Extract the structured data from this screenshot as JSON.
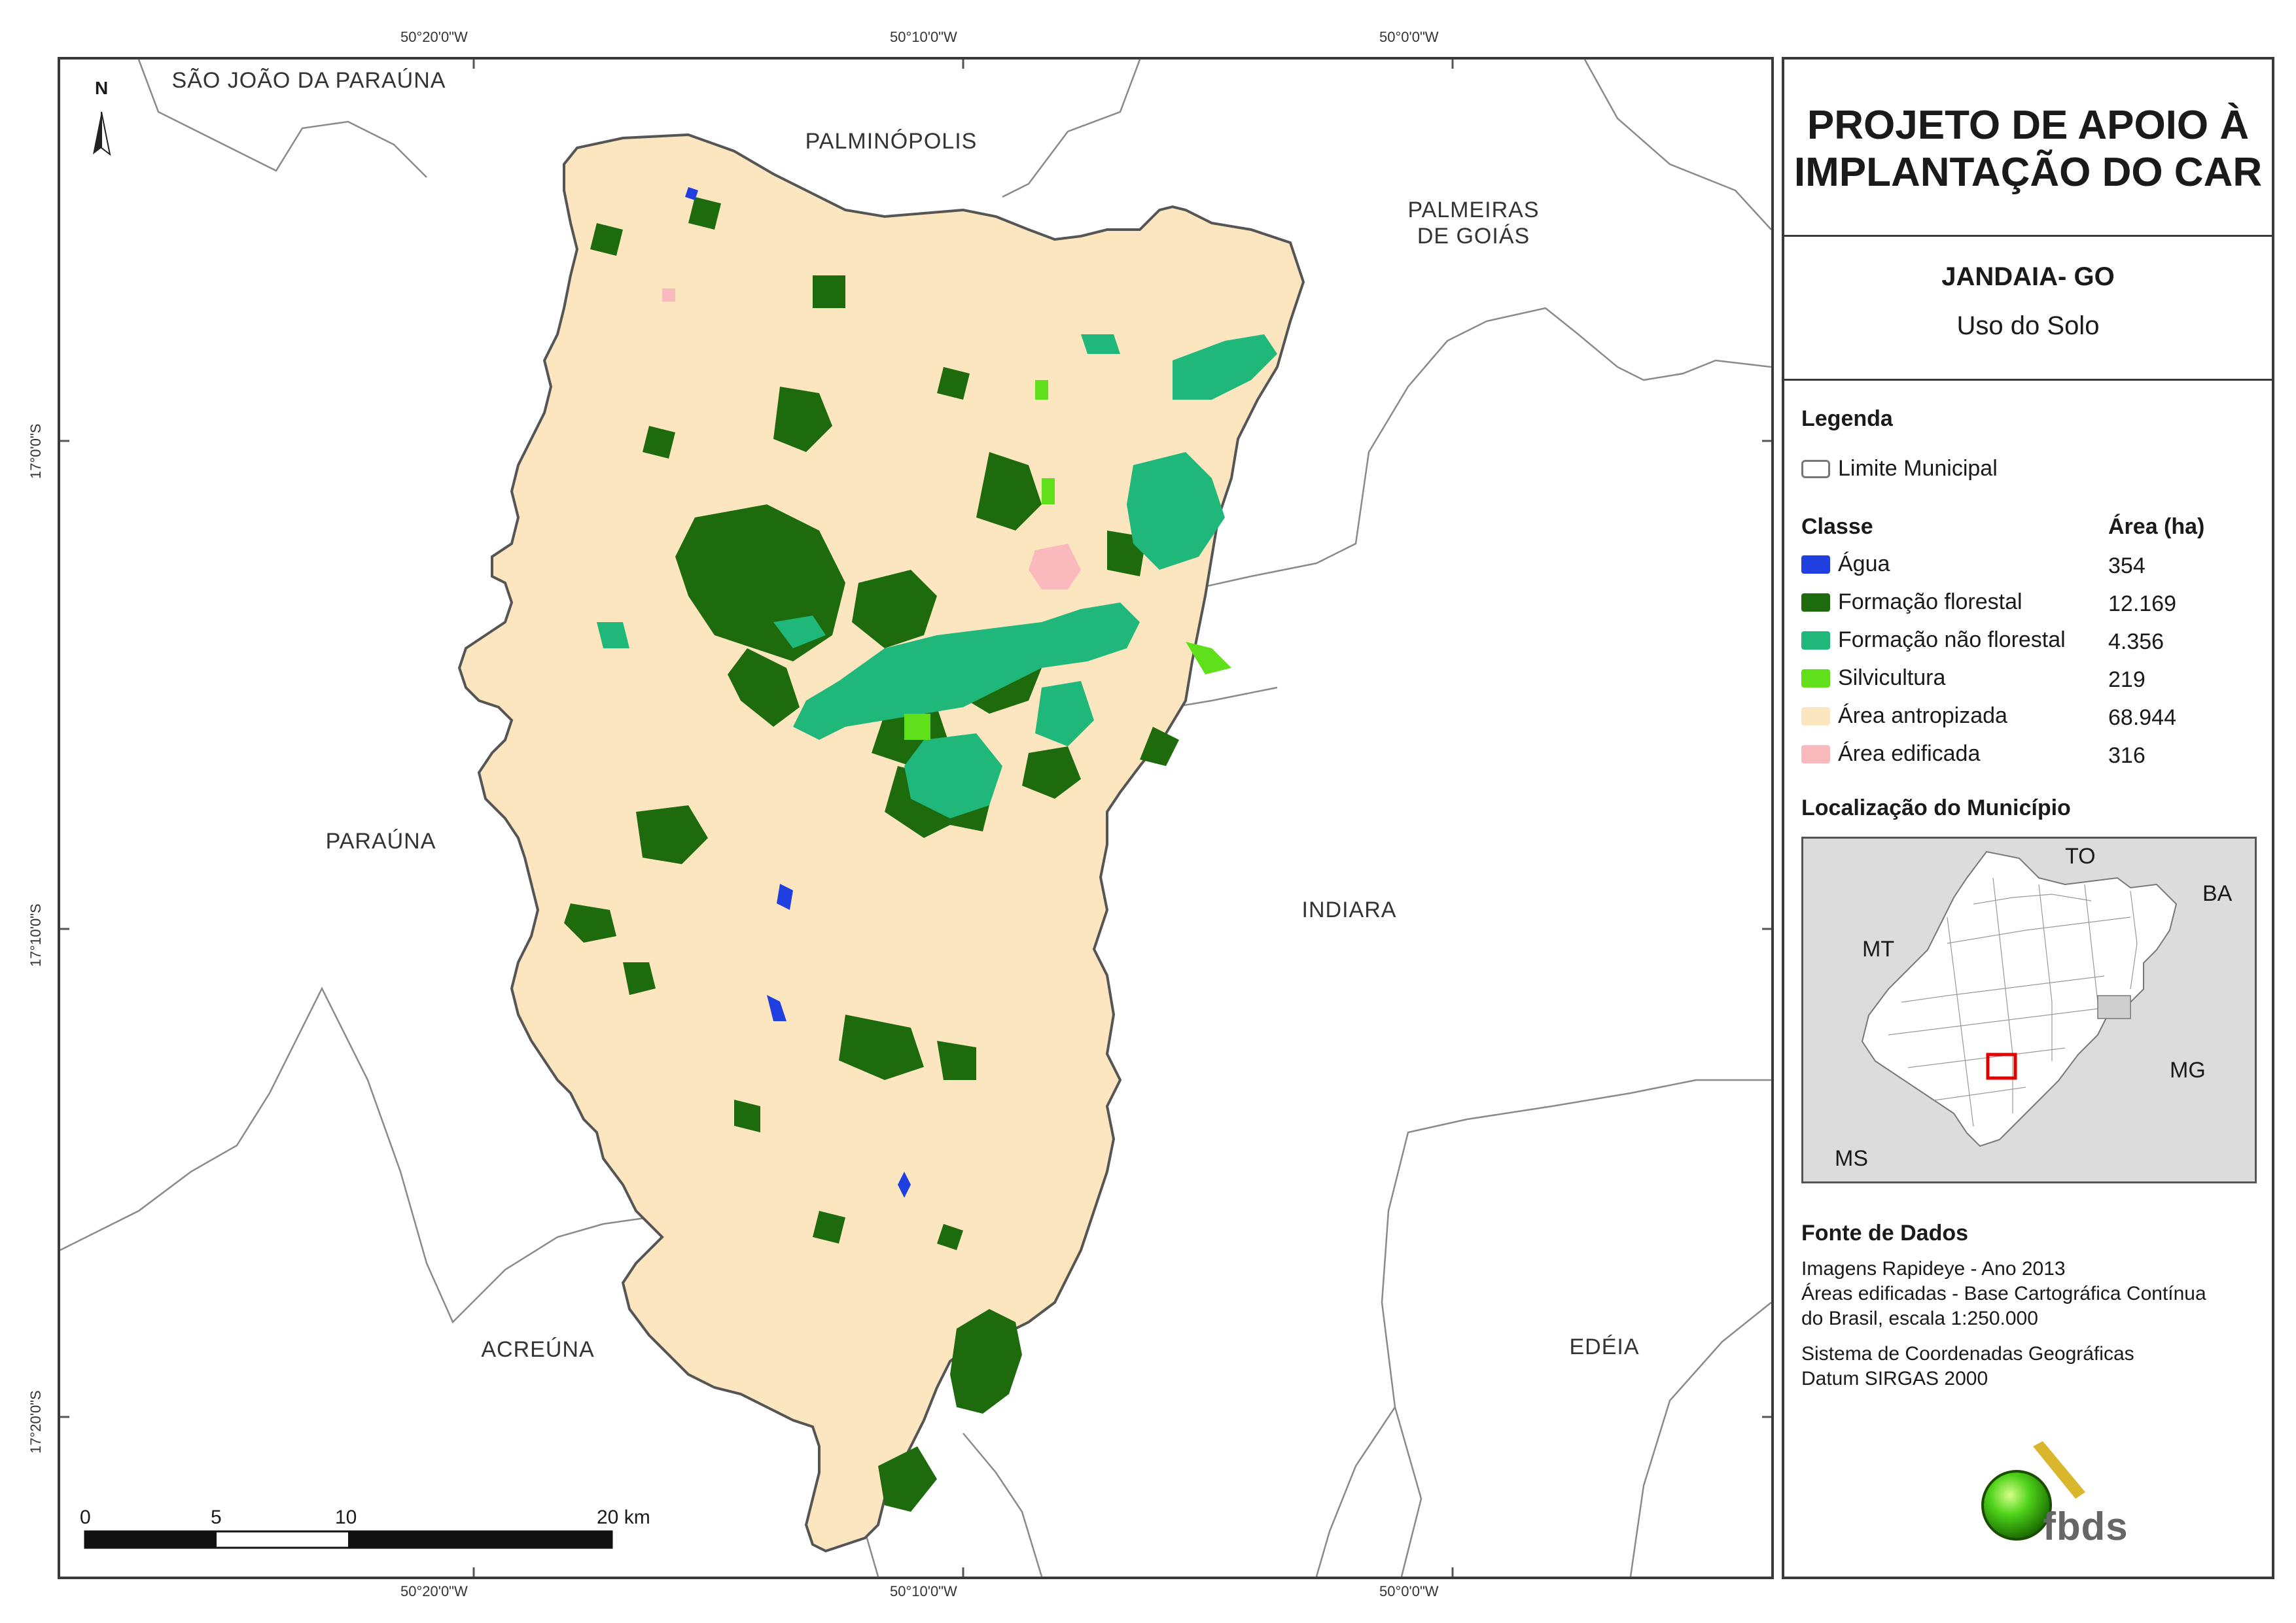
{
  "map": {
    "coords_top": [
      "50°20'0\"W",
      "50°10'0\"W",
      "50°0'0\"W"
    ],
    "coords_bottom": [
      "50°20'0\"W",
      "50°10'0\"W",
      "50°0'0\"W"
    ],
    "coords_left": [
      "17°0'0\"S",
      "17°10'0\"S",
      "17°20'0\"S"
    ],
    "north_label": "N",
    "places": {
      "sao_joao": "SÃO JOÃO DA PARAÚNA",
      "palminopolis": "PALMINÓPOLIS",
      "palmeiras_1": "PALMEIRAS",
      "palmeiras_2": "DE GOIÁS",
      "parauna": "PARAÚNA",
      "indiara": "INDIARA",
      "acreuna": "ACREÚNA",
      "edeia": "EDÉIA"
    },
    "scale_labels": [
      "0",
      "5",
      "10",
      "20 km"
    ]
  },
  "panel": {
    "title_line1": "PROJETO DE APOIO À",
    "title_line2": "IMPLANTAÇÃO DO CAR",
    "municipality": "JANDAIA- GO",
    "theme": "Uso do Solo",
    "legend_heading": "Legenda",
    "boundary_label": "Limite Municipal",
    "class_heading": "Classe",
    "area_heading": "Área (ha)",
    "classes": [
      {
        "label": "Água",
        "area": "354",
        "color": "#1f3fe0"
      },
      {
        "label": "Formação florestal",
        "area": "12.169",
        "color": "#1e6b0e"
      },
      {
        "label": "Formação não florestal",
        "area": "4.356",
        "color": "#20b77a"
      },
      {
        "label": "Silvicultura",
        "area": "219",
        "color": "#5fe01a"
      },
      {
        "label": "Área antropizada",
        "area": "68.944",
        "color": "#fbe6bf"
      },
      {
        "label": "Área edificada",
        "area": "316",
        "color": "#f9b9bd"
      }
    ],
    "location_heading": "Localização do Município",
    "inset_labels": {
      "to": "TO",
      "ba": "BA",
      "mt": "MT",
      "mg": "MG",
      "ms": "MS"
    },
    "source_heading": "Fonte de Dados",
    "source_lines": [
      "Imagens Rapideye - Ano 2013",
      "Áreas edificadas - Base Cartográfica Contínua",
      "do Brasil, escala 1:250.000"
    ],
    "crs_lines": [
      "Sistema de Coordenadas Geográficas",
      "Datum SIRGAS 2000"
    ],
    "logo_text": "fbds"
  }
}
